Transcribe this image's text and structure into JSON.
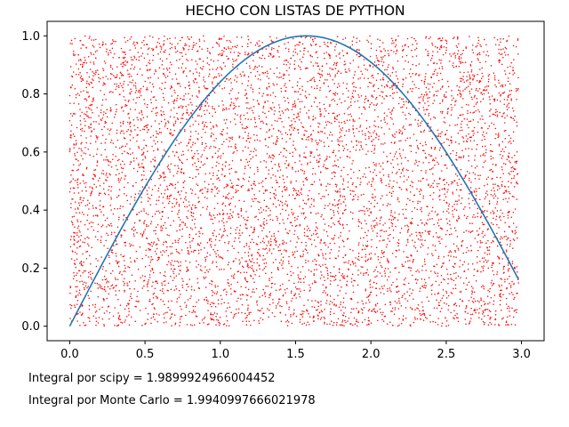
{
  "chart_data": {
    "type": "scatter",
    "title": "HECHO CON LISTAS DE PYTHON",
    "xlabel": "",
    "ylabel": "",
    "xlim": [
      -0.15,
      3.15
    ],
    "ylim": [
      -0.05,
      1.05
    ],
    "xticks": [
      0.0,
      0.5,
      1.0,
      1.5,
      2.0,
      2.5,
      3.0
    ],
    "xtick_labels": [
      "0.0",
      "0.5",
      "1.0",
      "1.5",
      "2.0",
      "2.5",
      "3.0"
    ],
    "yticks": [
      0.0,
      0.2,
      0.4,
      0.6,
      0.8,
      1.0
    ],
    "ytick_labels": [
      "0.0",
      "0.2",
      "0.4",
      "0.6",
      "0.8",
      "1.0"
    ],
    "grid": false,
    "series": [
      {
        "kind": "line",
        "function": "sin(x)",
        "x_range": [
          0.0,
          2.98
        ],
        "color": "#1f77b4"
      },
      {
        "kind": "scatter",
        "distribution": "uniform random",
        "x_range": [
          0.0,
          2.98
        ],
        "y_range": [
          0.0,
          1.0
        ],
        "count": 10000,
        "color": "#ff0000"
      }
    ]
  },
  "annotations": {
    "scipy": "Integral por scipy = 1.9899924966004452",
    "monte_carlo": "Integral por Monte Carlo = 1.9940997666021978"
  },
  "colors": {
    "line": "#1f77b4",
    "points": "#ff0000",
    "axes": "#000000"
  }
}
